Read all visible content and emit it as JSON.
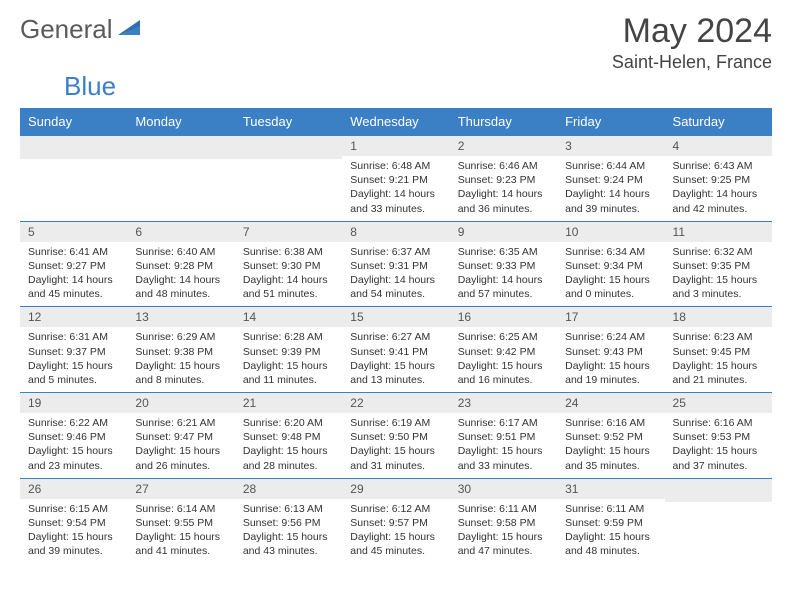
{
  "logo": {
    "word1": "General",
    "word2": "Blue"
  },
  "title": "May 2024",
  "location": "Saint-Helen, France",
  "weekdays": [
    "Sunday",
    "Monday",
    "Tuesday",
    "Wednesday",
    "Thursday",
    "Friday",
    "Saturday"
  ],
  "colors": {
    "header_bg": "#3b7fc4",
    "header_text": "#ffffff",
    "daynum_bg": "#ececec",
    "rule": "#3b7fc4",
    "text": "#333333",
    "title_text": "#444444",
    "logo_gray": "#5a5a5a",
    "logo_blue": "#3b7fc4"
  },
  "grid": [
    [
      {
        "n": "",
        "sr": "",
        "ss": "",
        "dl": ""
      },
      {
        "n": "",
        "sr": "",
        "ss": "",
        "dl": ""
      },
      {
        "n": "",
        "sr": "",
        "ss": "",
        "dl": ""
      },
      {
        "n": "1",
        "sr": "Sunrise: 6:48 AM",
        "ss": "Sunset: 9:21 PM",
        "dl": "Daylight: 14 hours and 33 minutes."
      },
      {
        "n": "2",
        "sr": "Sunrise: 6:46 AM",
        "ss": "Sunset: 9:23 PM",
        "dl": "Daylight: 14 hours and 36 minutes."
      },
      {
        "n": "3",
        "sr": "Sunrise: 6:44 AM",
        "ss": "Sunset: 9:24 PM",
        "dl": "Daylight: 14 hours and 39 minutes."
      },
      {
        "n": "4",
        "sr": "Sunrise: 6:43 AM",
        "ss": "Sunset: 9:25 PM",
        "dl": "Daylight: 14 hours and 42 minutes."
      }
    ],
    [
      {
        "n": "5",
        "sr": "Sunrise: 6:41 AM",
        "ss": "Sunset: 9:27 PM",
        "dl": "Daylight: 14 hours and 45 minutes."
      },
      {
        "n": "6",
        "sr": "Sunrise: 6:40 AM",
        "ss": "Sunset: 9:28 PM",
        "dl": "Daylight: 14 hours and 48 minutes."
      },
      {
        "n": "7",
        "sr": "Sunrise: 6:38 AM",
        "ss": "Sunset: 9:30 PM",
        "dl": "Daylight: 14 hours and 51 minutes."
      },
      {
        "n": "8",
        "sr": "Sunrise: 6:37 AM",
        "ss": "Sunset: 9:31 PM",
        "dl": "Daylight: 14 hours and 54 minutes."
      },
      {
        "n": "9",
        "sr": "Sunrise: 6:35 AM",
        "ss": "Sunset: 9:33 PM",
        "dl": "Daylight: 14 hours and 57 minutes."
      },
      {
        "n": "10",
        "sr": "Sunrise: 6:34 AM",
        "ss": "Sunset: 9:34 PM",
        "dl": "Daylight: 15 hours and 0 minutes."
      },
      {
        "n": "11",
        "sr": "Sunrise: 6:32 AM",
        "ss": "Sunset: 9:35 PM",
        "dl": "Daylight: 15 hours and 3 minutes."
      }
    ],
    [
      {
        "n": "12",
        "sr": "Sunrise: 6:31 AM",
        "ss": "Sunset: 9:37 PM",
        "dl": "Daylight: 15 hours and 5 minutes."
      },
      {
        "n": "13",
        "sr": "Sunrise: 6:29 AM",
        "ss": "Sunset: 9:38 PM",
        "dl": "Daylight: 15 hours and 8 minutes."
      },
      {
        "n": "14",
        "sr": "Sunrise: 6:28 AM",
        "ss": "Sunset: 9:39 PM",
        "dl": "Daylight: 15 hours and 11 minutes."
      },
      {
        "n": "15",
        "sr": "Sunrise: 6:27 AM",
        "ss": "Sunset: 9:41 PM",
        "dl": "Daylight: 15 hours and 13 minutes."
      },
      {
        "n": "16",
        "sr": "Sunrise: 6:25 AM",
        "ss": "Sunset: 9:42 PM",
        "dl": "Daylight: 15 hours and 16 minutes."
      },
      {
        "n": "17",
        "sr": "Sunrise: 6:24 AM",
        "ss": "Sunset: 9:43 PM",
        "dl": "Daylight: 15 hours and 19 minutes."
      },
      {
        "n": "18",
        "sr": "Sunrise: 6:23 AM",
        "ss": "Sunset: 9:45 PM",
        "dl": "Daylight: 15 hours and 21 minutes."
      }
    ],
    [
      {
        "n": "19",
        "sr": "Sunrise: 6:22 AM",
        "ss": "Sunset: 9:46 PM",
        "dl": "Daylight: 15 hours and 23 minutes."
      },
      {
        "n": "20",
        "sr": "Sunrise: 6:21 AM",
        "ss": "Sunset: 9:47 PM",
        "dl": "Daylight: 15 hours and 26 minutes."
      },
      {
        "n": "21",
        "sr": "Sunrise: 6:20 AM",
        "ss": "Sunset: 9:48 PM",
        "dl": "Daylight: 15 hours and 28 minutes."
      },
      {
        "n": "22",
        "sr": "Sunrise: 6:19 AM",
        "ss": "Sunset: 9:50 PM",
        "dl": "Daylight: 15 hours and 31 minutes."
      },
      {
        "n": "23",
        "sr": "Sunrise: 6:17 AM",
        "ss": "Sunset: 9:51 PM",
        "dl": "Daylight: 15 hours and 33 minutes."
      },
      {
        "n": "24",
        "sr": "Sunrise: 6:16 AM",
        "ss": "Sunset: 9:52 PM",
        "dl": "Daylight: 15 hours and 35 minutes."
      },
      {
        "n": "25",
        "sr": "Sunrise: 6:16 AM",
        "ss": "Sunset: 9:53 PM",
        "dl": "Daylight: 15 hours and 37 minutes."
      }
    ],
    [
      {
        "n": "26",
        "sr": "Sunrise: 6:15 AM",
        "ss": "Sunset: 9:54 PM",
        "dl": "Daylight: 15 hours and 39 minutes."
      },
      {
        "n": "27",
        "sr": "Sunrise: 6:14 AM",
        "ss": "Sunset: 9:55 PM",
        "dl": "Daylight: 15 hours and 41 minutes."
      },
      {
        "n": "28",
        "sr": "Sunrise: 6:13 AM",
        "ss": "Sunset: 9:56 PM",
        "dl": "Daylight: 15 hours and 43 minutes."
      },
      {
        "n": "29",
        "sr": "Sunrise: 6:12 AM",
        "ss": "Sunset: 9:57 PM",
        "dl": "Daylight: 15 hours and 45 minutes."
      },
      {
        "n": "30",
        "sr": "Sunrise: 6:11 AM",
        "ss": "Sunset: 9:58 PM",
        "dl": "Daylight: 15 hours and 47 minutes."
      },
      {
        "n": "31",
        "sr": "Sunrise: 6:11 AM",
        "ss": "Sunset: 9:59 PM",
        "dl": "Daylight: 15 hours and 48 minutes."
      },
      {
        "n": "",
        "sr": "",
        "ss": "",
        "dl": ""
      }
    ]
  ]
}
